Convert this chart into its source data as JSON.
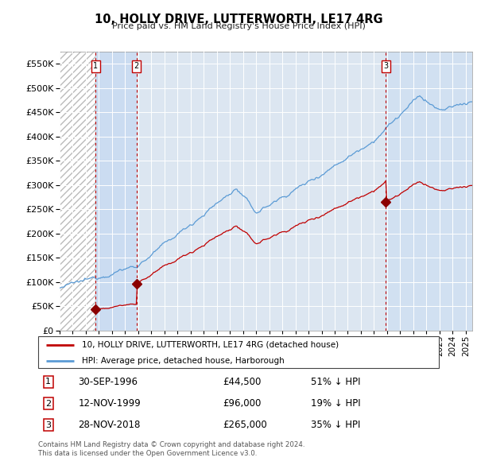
{
  "title": "10, HOLLY DRIVE, LUTTERWORTH, LE17 4RG",
  "subtitle": "Price paid vs. HM Land Registry's House Price Index (HPI)",
  "transactions": [
    {
      "id": 1,
      "date_label": "30-SEP-1996",
      "price": 44500,
      "hpi_note": "51% ↓ HPI",
      "x_year": 1996.75
    },
    {
      "id": 2,
      "date_label": "12-NOV-1999",
      "price": 96000,
      "hpi_note": "19% ↓ HPI",
      "x_year": 1999.87
    },
    {
      "id": 3,
      "date_label": "28-NOV-2018",
      "price": 265000,
      "hpi_note": "35% ↓ HPI",
      "x_year": 2018.9
    }
  ],
  "legend_line1": "10, HOLLY DRIVE, LUTTERWORTH, LE17 4RG (detached house)",
  "legend_line2": "HPI: Average price, detached house, Harborough",
  "footer1": "Contains HM Land Registry data © Crown copyright and database right 2024.",
  "footer2": "This data is licensed under the Open Government Licence v3.0.",
  "hpi_color": "#5b9bd5",
  "price_color": "#c00000",
  "marker_color": "#8b0000",
  "bg_color": "#dce6f1",
  "grid_color": "#ffffff",
  "ylim": [
    0,
    575000
  ],
  "xlim_start": 1994.0,
  "xlim_end": 2025.5,
  "yticks": [
    0,
    50000,
    100000,
    150000,
    200000,
    250000,
    300000,
    350000,
    400000,
    450000,
    500000,
    550000
  ],
  "xtick_start": 1994,
  "xtick_end": 2026
}
